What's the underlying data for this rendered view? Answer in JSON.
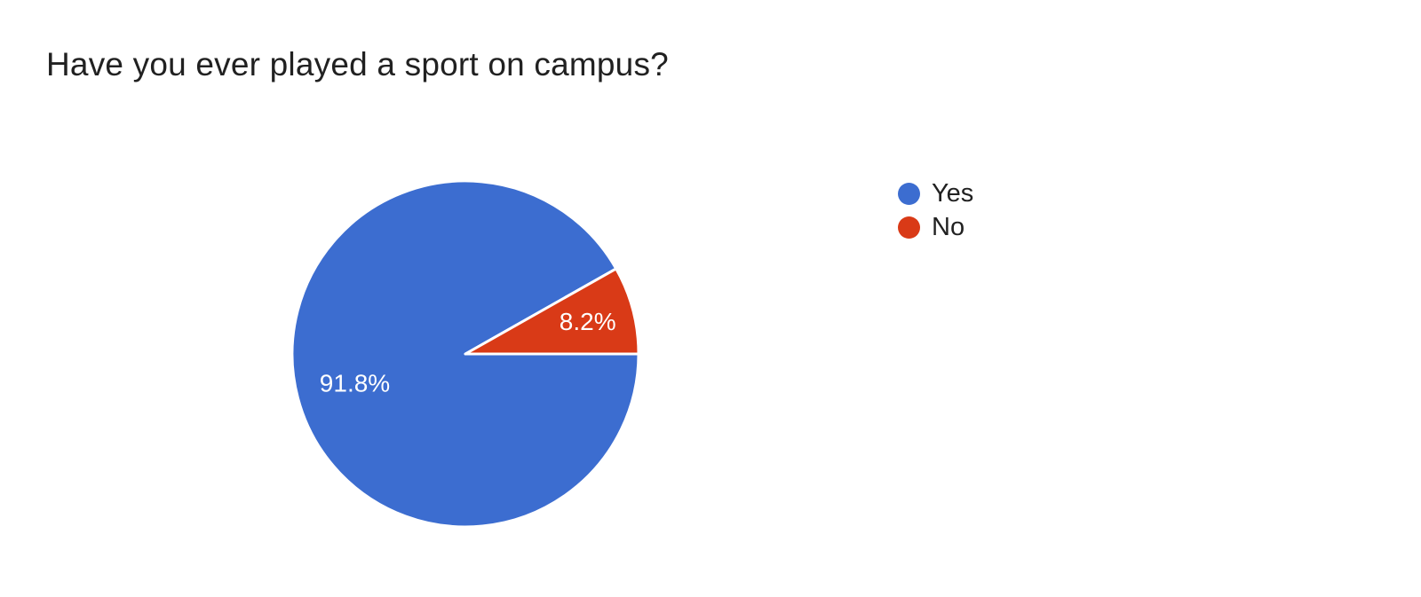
{
  "chart_data": {
    "type": "pie",
    "title": "Have you ever played a sport on campus?",
    "slices": [
      {
        "label": "Yes",
        "value": 91.8,
        "display": "91.8%",
        "color": "#3c6dd0"
      },
      {
        "label": "No",
        "value": 8.2,
        "display": "8.2%",
        "color": "#d93a17"
      }
    ],
    "legend_position": "right",
    "slice_border_color": "#ffffff",
    "label_color": "#ffffff",
    "title_color": "#212121"
  }
}
